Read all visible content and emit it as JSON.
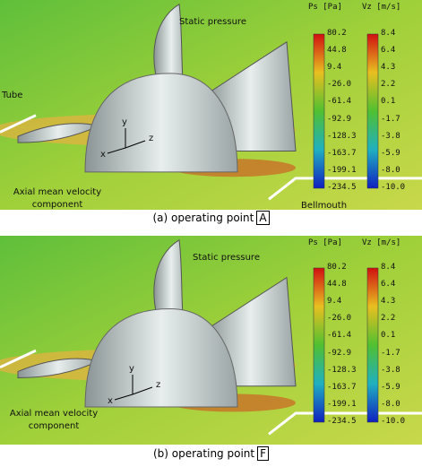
{
  "panels": [
    {
      "caption": {
        "text": "(a) operating point",
        "box": "A"
      },
      "labels": {
        "static_pressure": "Static pressure",
        "tube": "Tube",
        "axial": "Axial mean velocity component",
        "bellmouth": "Bellmouth"
      },
      "axes": [
        "x",
        "y",
        "z"
      ],
      "colorbars": [
        {
          "title": "Ps [Pa]",
          "ticks": [
            "80.2",
            "44.8",
            "9.4",
            "-26.0",
            "-61.4",
            "-92.9",
            "-128.3",
            "-163.7",
            "-199.1",
            "-234.5"
          ]
        },
        {
          "title": "Vz [m/s]",
          "ticks": [
            "8.4",
            "6.4",
            "4.3",
            "2.2",
            "0.1",
            "-1.7",
            "-3.8",
            "-5.9",
            "-8.0",
            "-10.0"
          ]
        }
      ]
    },
    {
      "caption": {
        "text": "(b) operating point",
        "box": "F"
      },
      "labels": {
        "static_pressure": "Static pressure",
        "axial": "Axial mean velocity component"
      },
      "axes": [
        "x",
        "y",
        "z"
      ],
      "colorbars": [
        {
          "title": "Ps [Pa]",
          "ticks": [
            "80.2",
            "44.8",
            "9.4",
            "-26.0",
            "-61.4",
            "-92.9",
            "-128.3",
            "-163.7",
            "-199.1",
            "-234.5"
          ]
        },
        {
          "title": "Vz [m/s]",
          "ticks": [
            "8.4",
            "6.4",
            "4.3",
            "2.2",
            "0.1",
            "-1.7",
            "-3.8",
            "-5.9",
            "-8.0",
            "-10.0"
          ]
        }
      ]
    }
  ]
}
